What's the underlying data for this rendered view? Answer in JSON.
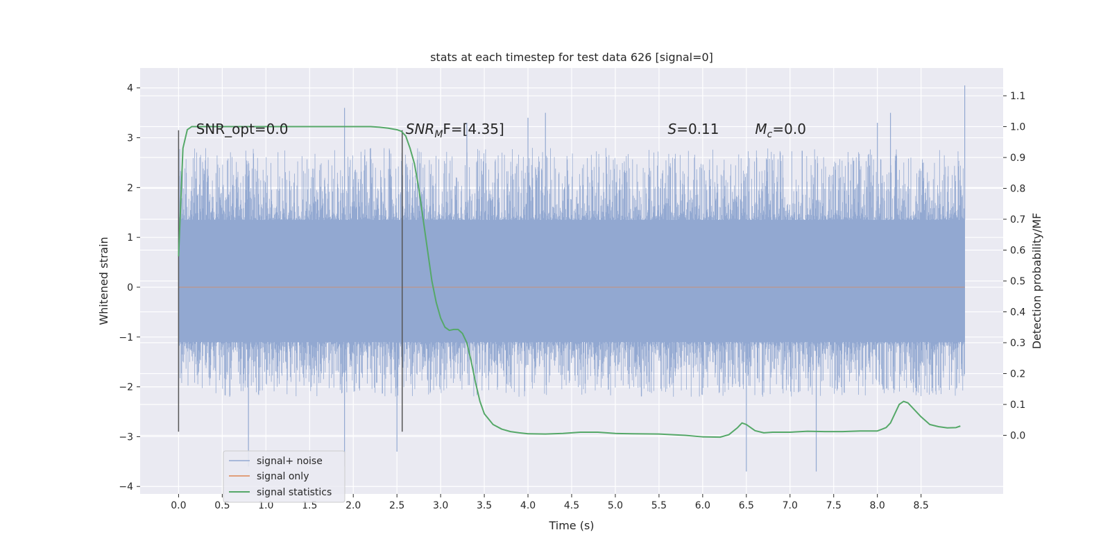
{
  "chart_data": {
    "type": "line",
    "title": "stats at each timestep for test data 626 [signal=0]",
    "xlabel": "Time (s)",
    "ylabel": "Whitened strain",
    "y2label": "Detection probability/MF",
    "xlim": [
      -0.44,
      9.44
    ],
    "ylim": [
      -4.15,
      4.4
    ],
    "y2lim": [
      -0.19,
      1.19
    ],
    "xticks": [
      0.0,
      0.5,
      1.0,
      1.5,
      2.0,
      2.5,
      3.0,
      3.5,
      4.0,
      4.5,
      5.0,
      5.5,
      6.0,
      6.5,
      7.0,
      7.5,
      8.0,
      8.5
    ],
    "xtick_labels": [
      "0.0",
      "0.5",
      "1.0",
      "1.5",
      "2.0",
      "2.5",
      "3.0",
      "3.5",
      "4.0",
      "4.5",
      "5.0",
      "5.5",
      "6.0",
      "6.5",
      "7.0",
      "7.5",
      "8.0",
      "8.5"
    ],
    "yticks": [
      4,
      3,
      2,
      1,
      0,
      -1,
      -2,
      -3,
      -4
    ],
    "ytick_labels": [
      "4",
      "3",
      "2",
      "1",
      "0",
      "−1",
      "−2",
      "−3",
      "−4"
    ],
    "y2ticks": [
      1.1,
      1.0,
      0.9,
      0.8,
      0.7,
      0.6,
      0.5,
      0.4,
      0.3,
      0.2,
      0.1,
      0.0
    ],
    "y2tick_labels": [
      "1.1",
      "1.0",
      "0.9",
      "0.8",
      "0.7",
      "0.6",
      "0.5",
      "0.4",
      "0.3",
      "0.2",
      "0.1",
      "0.0"
    ],
    "series": [
      {
        "name": "signal+ noise",
        "axis": "left",
        "color": "#92a8d1",
        "x_range": [
          0.0,
          9.0
        ],
        "band": [
          -1.1,
          1.35
        ],
        "typical_range": [
          -2.2,
          2.8
        ],
        "peaks_up": [
          [
            1.9,
            3.6
          ],
          [
            3.3,
            3.3
          ],
          [
            4.0,
            3.4
          ],
          [
            4.2,
            3.5
          ],
          [
            8.0,
            3.3
          ],
          [
            8.15,
            3.5
          ],
          [
            9.0,
            4.05
          ]
        ],
        "peaks_down": [
          [
            0.8,
            -3.6
          ],
          [
            1.9,
            -3.6
          ],
          [
            2.5,
            -3.3
          ],
          [
            6.5,
            -3.7
          ],
          [
            7.3,
            -3.7
          ]
        ]
      },
      {
        "name": "signal only",
        "axis": "left",
        "color": "#dd8452",
        "x": [
          0.0,
          9.0
        ],
        "y": [
          0.0,
          0.0
        ]
      },
      {
        "name": "signal statistics",
        "axis": "right",
        "color": "#55a868",
        "x": [
          0.0,
          0.05,
          0.1,
          0.15,
          0.2,
          0.3,
          0.5,
          1.0,
          1.5,
          2.0,
          2.2,
          2.3,
          2.4,
          2.5,
          2.55,
          2.6,
          2.65,
          2.7,
          2.75,
          2.8,
          2.85,
          2.9,
          2.95,
          3.0,
          3.05,
          3.1,
          3.15,
          3.2,
          3.25,
          3.3,
          3.35,
          3.4,
          3.45,
          3.5,
          3.6,
          3.7,
          3.8,
          3.9,
          4.0,
          4.2,
          4.4,
          4.6,
          4.8,
          5.0,
          5.2,
          5.5,
          5.8,
          6.0,
          6.2,
          6.3,
          6.4,
          6.45,
          6.5,
          6.6,
          6.7,
          6.8,
          7.0,
          7.2,
          7.4,
          7.6,
          7.8,
          8.0,
          8.1,
          8.15,
          8.2,
          8.25,
          8.3,
          8.35,
          8.4,
          8.5,
          8.6,
          8.7,
          8.8,
          8.9,
          8.95
        ],
        "y": [
          0.58,
          0.93,
          0.99,
          1.0,
          1.0,
          1.0,
          1.0,
          1.0,
          1.0,
          1.0,
          1.0,
          0.998,
          0.995,
          0.99,
          0.985,
          0.97,
          0.93,
          0.88,
          0.8,
          0.7,
          0.6,
          0.5,
          0.43,
          0.38,
          0.35,
          0.34,
          0.343,
          0.343,
          0.33,
          0.3,
          0.24,
          0.17,
          0.11,
          0.07,
          0.035,
          0.02,
          0.012,
          0.008,
          0.005,
          0.004,
          0.006,
          0.01,
          0.01,
          0.006,
          0.005,
          0.004,
          0.0,
          -0.005,
          -0.006,
          0.002,
          0.025,
          0.04,
          0.035,
          0.015,
          0.008,
          0.01,
          0.01,
          0.013,
          0.012,
          0.012,
          0.014,
          0.014,
          0.025,
          0.04,
          0.07,
          0.1,
          0.11,
          0.105,
          0.09,
          0.06,
          0.035,
          0.028,
          0.024,
          0.025,
          0.03
        ]
      }
    ],
    "vlines": [
      {
        "x": 0.0,
        "ymin": -2.9,
        "ymax": 3.15
      },
      {
        "x": 2.56,
        "ymin": -2.9,
        "ymax": 3.15
      }
    ],
    "annotations": [
      {
        "id": "snr-opt",
        "text": "SNR_opt=0.0",
        "x": 0.2,
        "y": 3.2
      },
      {
        "id": "snr-mf",
        "prefix": "SNR",
        "sub": "M",
        "suffix": "F=[4.35]",
        "x": 2.6,
        "y": 3.2
      },
      {
        "id": "s-value",
        "prefix": "S",
        "suffix": "=0.11",
        "x": 5.6,
        "y": 3.2
      },
      {
        "id": "mc-value",
        "prefix": "M",
        "sub": "c",
        "suffix": "=0.0",
        "x": 6.6,
        "y": 3.2
      }
    ],
    "legend": {
      "location": "lower-left",
      "entries": [
        "signal+ noise",
        "signal only",
        "signal statistics"
      ]
    },
    "grid": true
  }
}
